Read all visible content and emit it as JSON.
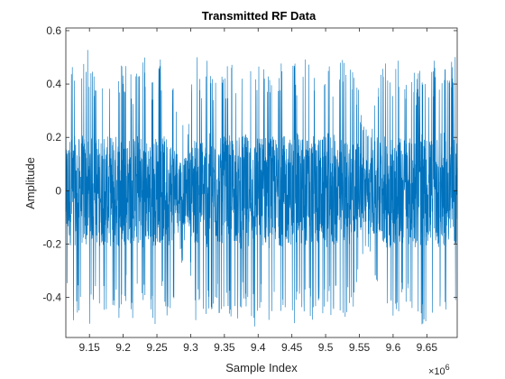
{
  "chart_data": {
    "type": "line",
    "title": "Transmitted RF Data",
    "xlabel": "Sample Index",
    "ylabel": "Amplitude",
    "x_exponent_base": "×10",
    "x_exponent_power": "6",
    "xlim": [
      9.115,
      9.695
    ],
    "ylim": [
      -0.55,
      0.61
    ],
    "xticks": [
      9.15,
      9.2,
      9.25,
      9.3,
      9.35,
      9.4,
      9.45,
      9.5,
      9.55,
      9.6,
      9.65
    ],
    "xtick_labels": [
      "9.15",
      "9.2",
      "9.25",
      "9.3",
      "9.35",
      "9.4",
      "9.45",
      "9.5",
      "9.55",
      "9.6",
      "9.65"
    ],
    "yticks": [
      -0.4,
      -0.2,
      0,
      0.2,
      0.4,
      0.6
    ],
    "ytick_labels": [
      "-0.4",
      "-0.2",
      "0",
      "0.2",
      "0.4",
      "0.6"
    ],
    "grid": false,
    "box": true,
    "series": [
      {
        "color": "#0072BD",
        "x": [
          9.115,
          9.125,
          9.135,
          9.145,
          9.155,
          9.165,
          9.175,
          9.185,
          9.195,
          9.205,
          9.215,
          9.225,
          9.235,
          9.245,
          9.255,
          9.265,
          9.275,
          9.285,
          9.295,
          9.305,
          9.315,
          9.325,
          9.335,
          9.345,
          9.355,
          9.365,
          9.375,
          9.385,
          9.395,
          9.405,
          9.415,
          9.425,
          9.435,
          9.445,
          9.455,
          9.465,
          9.475,
          9.485,
          9.495,
          9.505,
          9.515,
          9.525,
          9.535,
          9.545,
          9.555,
          9.565,
          9.575,
          9.585,
          9.595,
          9.605,
          9.615,
          9.625,
          9.635,
          9.645,
          9.655,
          9.665,
          9.675,
          9.685,
          9.695
        ],
        "upper_envelope": [
          0.4,
          0.52,
          0.48,
          0.55,
          0.46,
          0.5,
          0.42,
          0.53,
          0.47,
          0.51,
          0.44,
          0.49,
          0.52,
          0.45,
          0.5,
          0.43,
          0.48,
          0.3,
          0.2,
          0.54,
          0.46,
          0.51,
          0.44,
          0.5,
          0.47,
          0.52,
          0.45,
          0.49,
          0.43,
          0.51,
          0.46,
          0.48,
          0.52,
          0.44,
          0.5,
          0.47,
          0.53,
          0.45,
          0.49,
          0.51,
          0.46,
          0.56,
          0.48,
          0.44,
          0.3,
          0.21,
          0.43,
          0.5,
          0.47,
          0.52,
          0.45,
          0.49,
          0.44,
          0.51,
          0.47,
          0.5,
          0.45,
          0.48,
          0.52
        ],
        "lower_envelope": [
          -0.38,
          -0.5,
          -0.46,
          -0.48,
          -0.52,
          -0.44,
          -0.49,
          -0.47,
          -0.51,
          -0.43,
          -0.5,
          -0.46,
          -0.48,
          -0.53,
          -0.45,
          -0.49,
          -0.47,
          -0.3,
          -0.2,
          -0.52,
          -0.46,
          -0.5,
          -0.44,
          -0.49,
          -0.47,
          -0.51,
          -0.45,
          -0.48,
          -0.53,
          -0.46,
          -0.5,
          -0.44,
          -0.49,
          -0.47,
          -0.51,
          -0.45,
          -0.48,
          -0.5,
          -0.46,
          -0.49,
          -0.44,
          -0.48,
          -0.47,
          -0.45,
          -0.3,
          -0.21,
          -0.44,
          -0.49,
          -0.46,
          -0.5,
          -0.45,
          -0.48,
          -0.47,
          -0.51,
          -0.46,
          -0.49,
          -0.45,
          -0.5,
          -0.44
        ],
        "core_amplitude": [
          0.2,
          0.21,
          0.2,
          0.22,
          0.2,
          0.21,
          0.2,
          0.22,
          0.21,
          0.2,
          0.21,
          0.22,
          0.2,
          0.21,
          0.2,
          0.21,
          0.19,
          0.14,
          0.12,
          0.21,
          0.2,
          0.22,
          0.21,
          0.2,
          0.21,
          0.2,
          0.22,
          0.21,
          0.2,
          0.21,
          0.22,
          0.2,
          0.21,
          0.2,
          0.22,
          0.21,
          0.2,
          0.21,
          0.2,
          0.22,
          0.21,
          0.2,
          0.2,
          0.19,
          0.14,
          0.12,
          0.2,
          0.21,
          0.22,
          0.2,
          0.21,
          0.2,
          0.22,
          0.21,
          0.2,
          0.21,
          0.22,
          0.2,
          0.21
        ]
      }
    ]
  }
}
